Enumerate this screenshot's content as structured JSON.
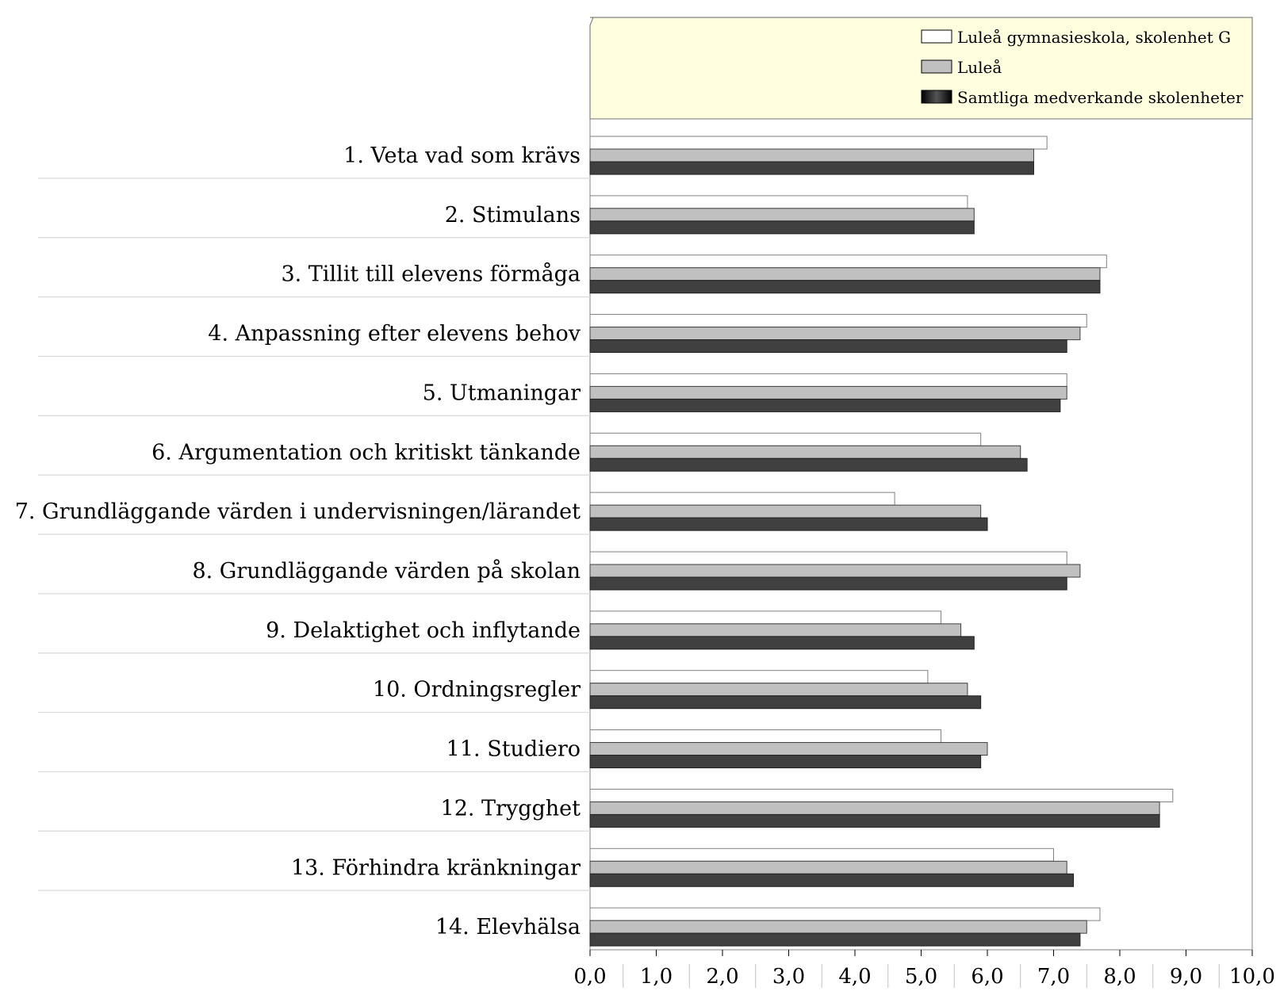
{
  "colors": {
    "legend_bg": "#ffffe0",
    "series_1": "#ffffff",
    "series_2": "#c0c0c0",
    "series_3": "#404040",
    "separator": "#d9d9d9"
  },
  "chart_data": {
    "type": "bar",
    "orientation": "horizontal",
    "title": "",
    "xlabel": "",
    "ylabel": "",
    "xlim": [
      0,
      10
    ],
    "grid": false,
    "legend_position": "top-right",
    "categories": [
      "1. Veta vad som krävs",
      "2. Stimulans",
      "3. Tillit till elevens förmåga",
      "4. Anpassning efter elevens behov",
      "5. Utmaningar",
      "6. Argumentation och kritiskt tänkande",
      "7. Grundläggande värden i undervisningen/lärandet",
      "8. Grundläggande värden på skolan",
      "9. Delaktighet och inflytande",
      "10. Ordningsregler",
      "11. Studiero",
      "12. Trygghet",
      "13. Förhindra kränkningar",
      "14. Elevhälsa"
    ],
    "series": [
      {
        "name": "Luleå gymnasieskola, skolenhet G",
        "values": [
          6.9,
          5.7,
          7.8,
          7.5,
          7.2,
          5.9,
          4.6,
          7.2,
          5.3,
          5.1,
          5.3,
          8.8,
          7.0,
          7.7
        ]
      },
      {
        "name": "Luleå",
        "values": [
          6.7,
          5.8,
          7.7,
          7.4,
          7.2,
          6.5,
          5.9,
          7.4,
          5.6,
          5.7,
          6.0,
          8.6,
          7.2,
          7.5
        ]
      },
      {
        "name": "Samtliga medverkande skolenheter",
        "values": [
          6.7,
          5.8,
          7.7,
          7.2,
          7.1,
          6.6,
          6.0,
          7.2,
          5.8,
          5.9,
          5.9,
          8.6,
          7.3,
          7.4
        ]
      }
    ],
    "x_ticks": [
      "0,0",
      "1,0",
      "2,0",
      "3,0",
      "4,0",
      "5,0",
      "6,0",
      "7,0",
      "8,0",
      "9,0",
      "10,0"
    ]
  }
}
